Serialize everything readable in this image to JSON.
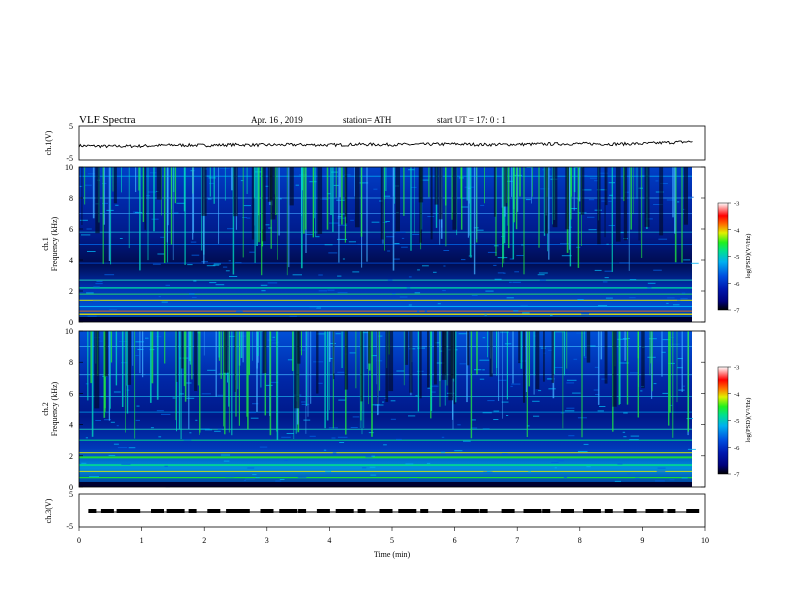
{
  "header": {
    "title": "VLF  Spectra",
    "date": "Apr. 16 , 2019",
    "station": "station= ATH",
    "start": "start  UT  =    17: 0   : 1"
  },
  "colors": {
    "spectrogram_scale": [
      "#000000",
      "#00007a",
      "#0018b0",
      "#0050e0",
      "#00b0f0",
      "#00e090",
      "#20f020",
      "#e0f000",
      "#ff7000",
      "#ff0000",
      "#ffffff"
    ]
  },
  "chart_data": [
    {
      "type": "line",
      "panel": "ch1_waveform",
      "ylabel": "ch.1(V)",
      "y_ticks": [
        "5",
        "-5"
      ],
      "ylim": [
        -5,
        5
      ],
      "xlim": [
        0,
        10
      ],
      "series": [
        {
          "x": [
            0.0,
            0.5,
            1.0,
            1.5,
            2.0,
            2.5,
            3.0,
            3.5,
            4.0,
            4.5,
            5.0,
            5.5,
            6.0,
            6.5,
            7.0,
            7.5,
            8.0,
            8.5,
            9.0,
            9.5,
            9.8
          ],
          "y": [
            -0.8,
            -1.0,
            -0.9,
            -0.6,
            -0.7,
            -0.5,
            -0.6,
            -0.5,
            -0.6,
            -0.4,
            -0.5,
            -0.4,
            -0.3,
            -0.5,
            -0.4,
            -0.3,
            -0.2,
            -0.3,
            -0.2,
            0.2,
            0.4
          ]
        }
      ]
    },
    {
      "type": "heatmap",
      "panel": "ch1_spectrogram",
      "ylabel": "ch.1\nFrequency (kHz)",
      "y_ticks": [
        "10",
        "8",
        "6",
        "4",
        "2",
        "0"
      ],
      "ylim": [
        0,
        10
      ],
      "xlim": [
        0,
        9.8
      ],
      "colorbar": {
        "label": "log(PSD)(V²/Hz)",
        "ticks": [
          "-3",
          "-4",
          "-5",
          "-6",
          "-7"
        ],
        "range": [
          -7,
          -3
        ]
      }
    },
    {
      "type": "heatmap",
      "panel": "ch2_spectrogram",
      "ylabel": "ch.2\nFrequency (kHz)",
      "y_ticks": [
        "10",
        "8",
        "6",
        "4",
        "2",
        "0"
      ],
      "ylim": [
        0,
        10
      ],
      "xlim": [
        0,
        9.8
      ],
      "colorbar": {
        "label": "log(PSD)(V²/Hz)",
        "ticks": [
          "-3",
          "-4",
          "-5",
          "-6",
          "-7"
        ],
        "range": [
          -7,
          -3
        ]
      }
    },
    {
      "type": "line",
      "panel": "ch3_waveform",
      "ylabel": "ch.3(V)",
      "y_ticks": [
        "5",
        "-5"
      ],
      "ylim": [
        -5,
        5
      ],
      "xlim": [
        0,
        10
      ],
      "xlabel": "Time  (min)",
      "x_ticks": [
        "0",
        "1",
        "2",
        "3",
        "4",
        "5",
        "6",
        "7",
        "8",
        "9",
        "10"
      ],
      "series": [
        {
          "x": [
            0.15,
            0.35,
            0.6,
            0.85,
            1.15,
            1.4,
            1.75,
            2.05,
            2.35,
            2.6,
            2.9,
            3.2,
            3.5,
            3.8,
            4.1,
            4.45,
            4.8,
            5.1,
            5.45,
            5.8,
            6.1,
            6.4,
            6.75,
            7.1,
            7.4,
            7.7,
            8.05,
            8.4,
            8.7,
            9.05,
            9.4,
            9.7
          ],
          "y": [
            0,
            0,
            0,
            0,
            0,
            0,
            0,
            0,
            0,
            0,
            0,
            0,
            0,
            0,
            0,
            0,
            0,
            0,
            0,
            0,
            0,
            0,
            0,
            0,
            0,
            0,
            0,
            0,
            0,
            0,
            0,
            0
          ]
        }
      ]
    }
  ]
}
